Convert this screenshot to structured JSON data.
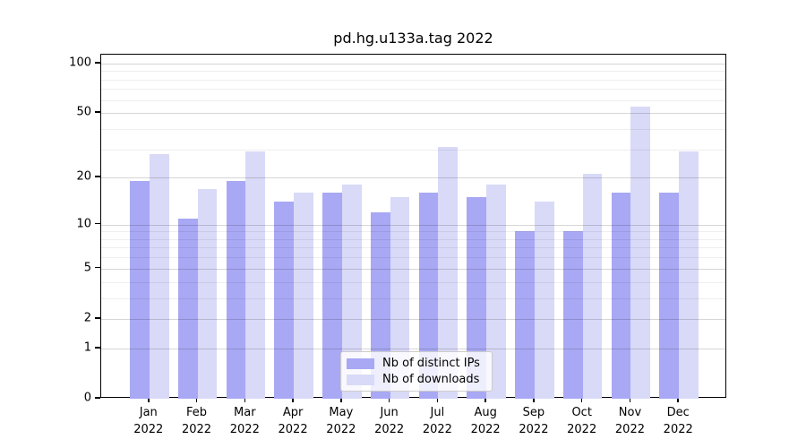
{
  "chart_data": {
    "type": "bar",
    "title": "pd.hg.u133a.tag 2022",
    "categories": [
      "Jan 2022",
      "Feb 2022",
      "Mar 2022",
      "Apr 2022",
      "May 2022",
      "Jun 2022",
      "Jul 2022",
      "Aug 2022",
      "Sep 2022",
      "Oct 2022",
      "Nov 2022",
      "Dec 2022"
    ],
    "series": [
      {
        "name": "Nb of distinct IPs",
        "color": "#a8a8f4",
        "values": [
          19,
          11,
          19,
          14,
          16,
          12,
          16,
          15,
          9,
          9,
          16,
          16
        ]
      },
      {
        "name": "Nb of downloads",
        "color": "#d9d9f8",
        "values": [
          28,
          17,
          29,
          16,
          18,
          15,
          31,
          18,
          14,
          21,
          55,
          29
        ]
      }
    ],
    "xlabel": "",
    "ylabel": "",
    "y_scale": "log1p",
    "y_ticks": [
      0,
      1,
      2,
      5,
      10,
      20,
      50,
      100
    ],
    "y_minor_ticks": [
      3,
      4,
      6,
      7,
      8,
      9,
      30,
      40,
      60,
      70,
      80,
      90
    ],
    "ylim": [
      0,
      110
    ],
    "grid": "on",
    "grid_position": "above-bars",
    "legend_position": "lower center"
  }
}
